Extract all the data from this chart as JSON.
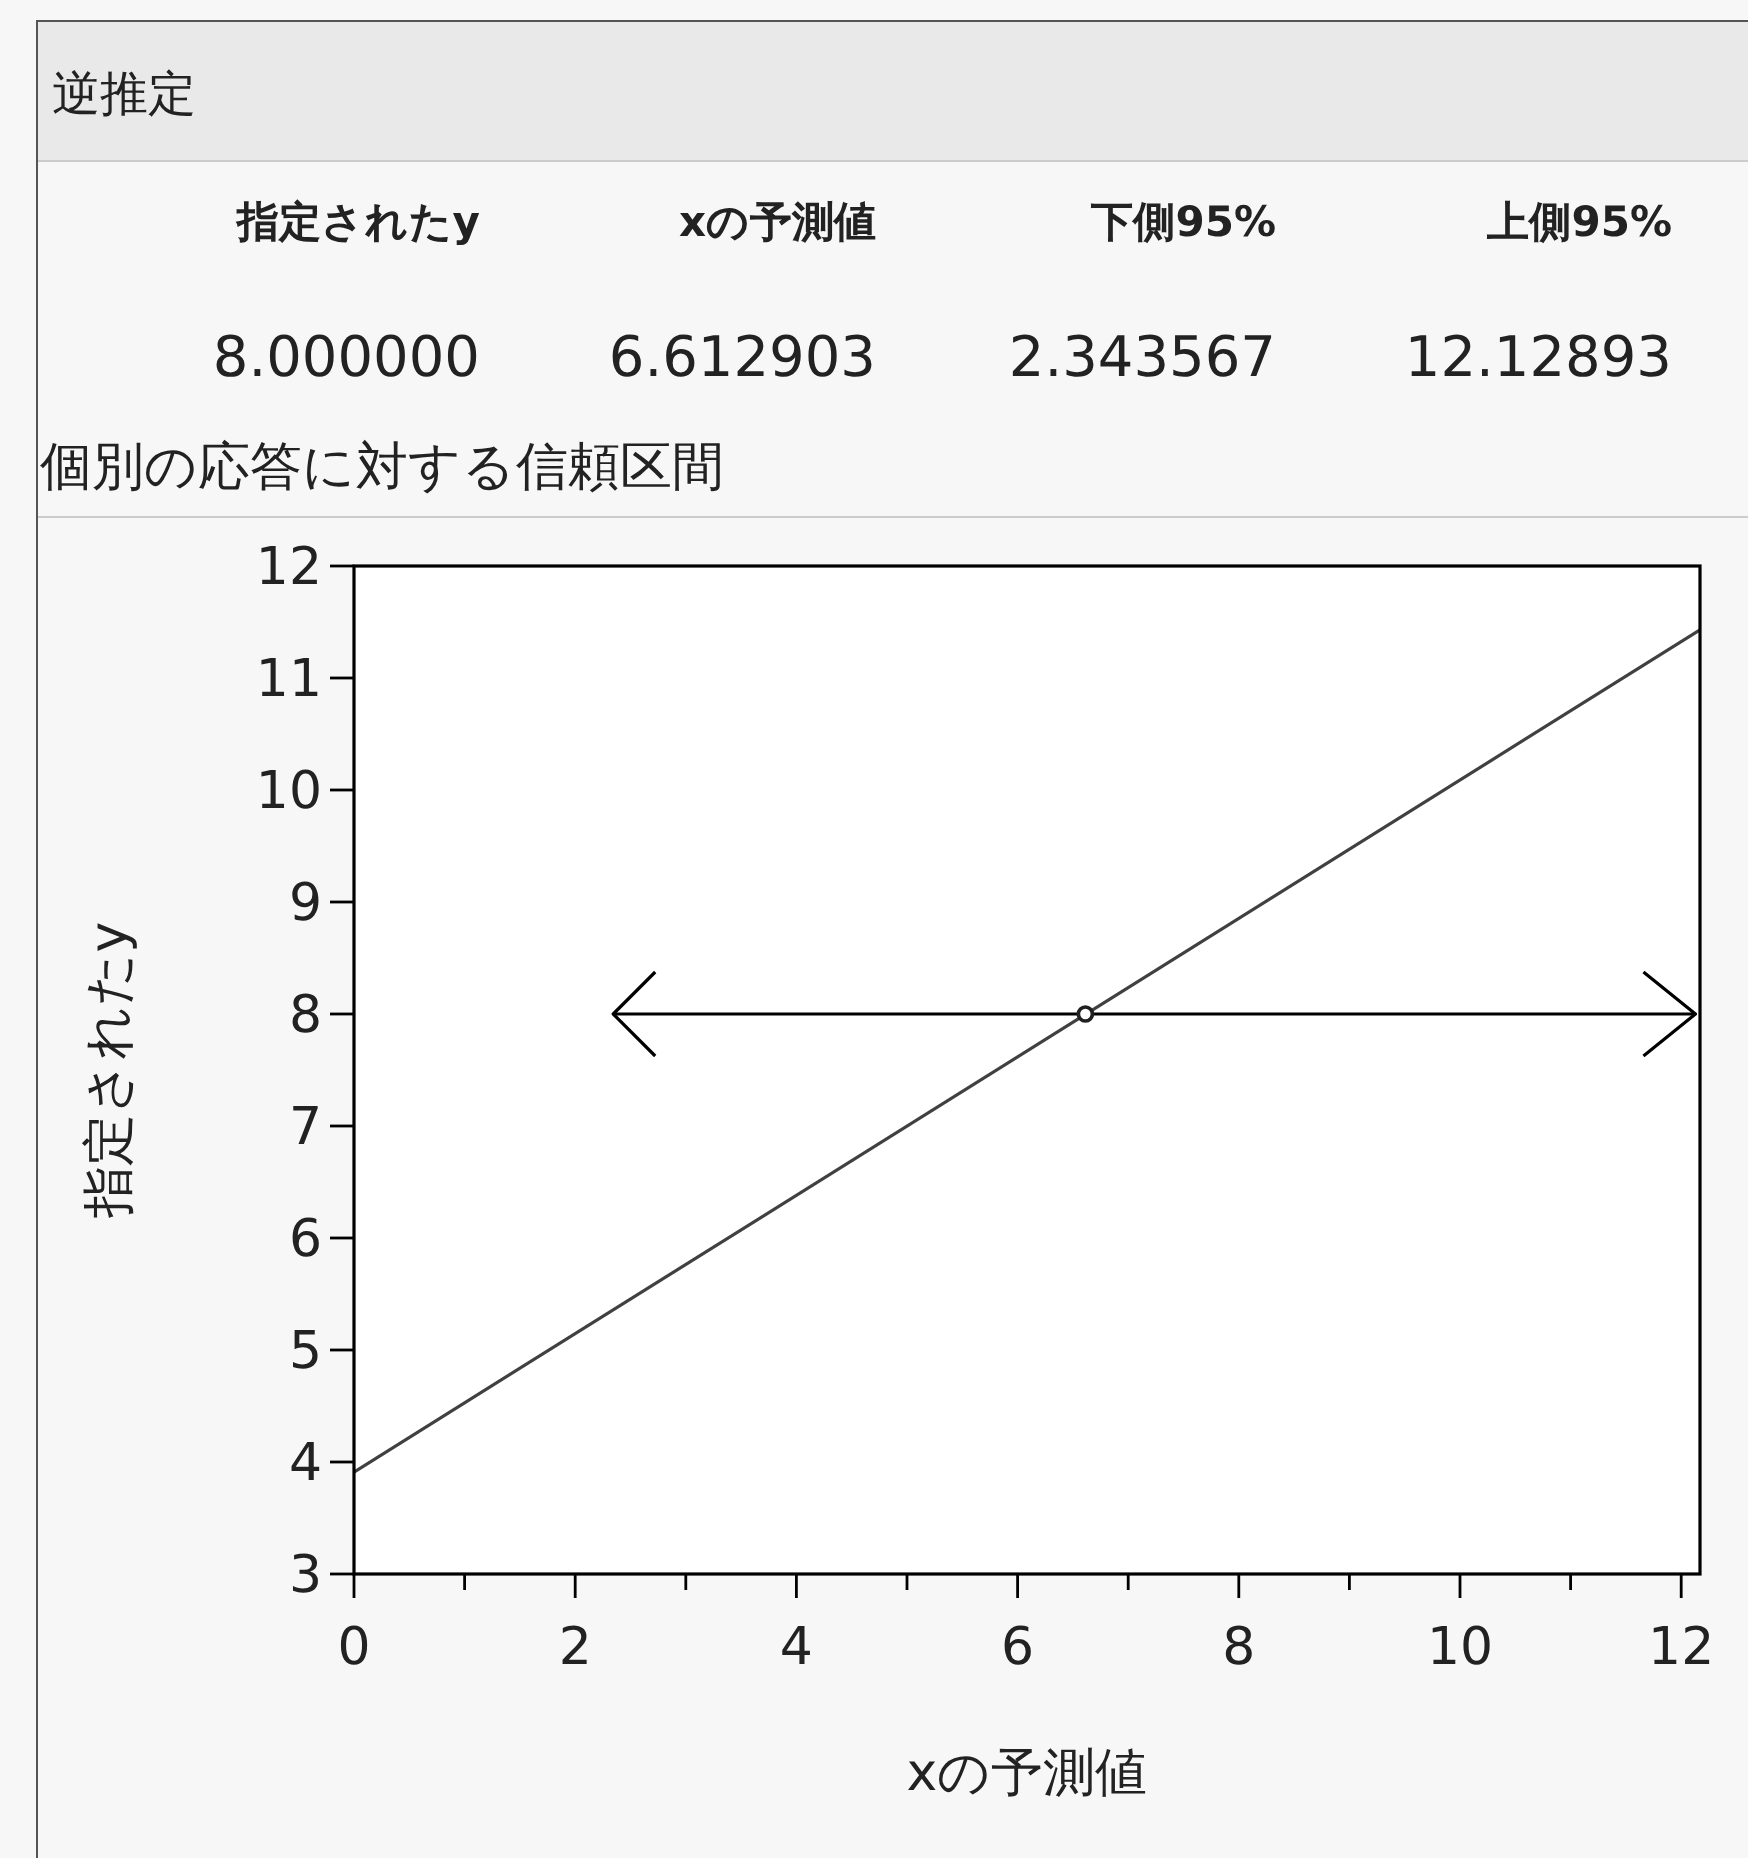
{
  "chart_data": [
    {
      "type": "other",
      "title": "逆推定",
      "annotations": [
        "指定されたy",
        "xの予測値",
        "下側95%",
        "上側95%",
        "8.000000",
        "6.612903",
        "2.343567",
        "12.12893",
        "個別の応答に対する信頼区間"
      ]
    },
    {
      "type": "line",
      "xlabel": "xの予測値",
      "ylabel": "指定されたy",
      "xlim": [
        0,
        12.17
      ],
      "ylim": [
        3,
        12
      ],
      "xticks": [
        0,
        {
          "value": 1,
          "label": null
        },
        2,
        {
          "value": 3,
          "label": null
        },
        4,
        {
          "value": 5,
          "label": null
        },
        6,
        {
          "value": 7,
          "label": null
        },
        8,
        {
          "value": 9,
          "label": null
        },
        10,
        {
          "value": 11,
          "label": null
        },
        12
      ],
      "yticks": [
        3,
        4,
        5,
        6,
        7,
        8,
        9,
        10,
        11,
        12
      ],
      "grid": false,
      "series": [
        {
          "type": "line",
          "color": "#404040",
          "x": [
            0,
            12.17
          ],
          "values": [
            3.91,
            11.43
          ],
          "marker": "none",
          "line_style": "solid"
        },
        {
          "type": "line",
          "color": "#000000",
          "x": [
            2.343567,
            12.12893
          ],
          "values": [
            8,
            8
          ]
        },
        {
          "type": "scatter",
          "color": "#202020",
          "x": [
            6.612903
          ],
          "values": [
            8
          ],
          "marker": "circle"
        }
      ]
    }
  ]
}
